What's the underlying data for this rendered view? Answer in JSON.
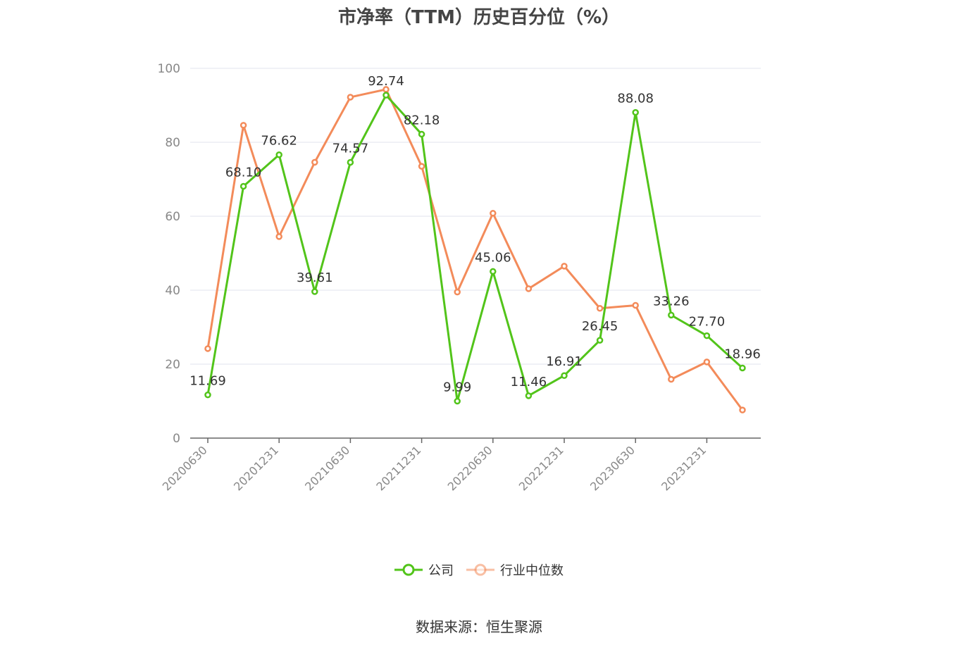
{
  "chart_data": {
    "type": "line",
    "title": "市净率（TTM）历史百分位（%）",
    "x": [
      "20200630",
      "20200930",
      "20201231",
      "20210331",
      "20210630",
      "20210930",
      "20211231",
      "20220331",
      "20220630",
      "20220930",
      "20221231",
      "20230331",
      "20230630",
      "20230930",
      "20231231",
      "20240331"
    ],
    "x_tick_labels": [
      "20200630",
      "20201231",
      "20210630",
      "20211231",
      "20220630",
      "20221231",
      "20230630",
      "20231231"
    ],
    "ylim": [
      0,
      100
    ],
    "y_ticks": [
      0,
      20,
      40,
      60,
      80,
      100
    ],
    "grid": true,
    "legend_position": "bottom",
    "series": [
      {
        "name": "公司",
        "color": "#52c41a",
        "values": [
          11.69,
          68.1,
          76.62,
          39.61,
          74.57,
          92.74,
          82.18,
          9.99,
          45.06,
          11.46,
          16.91,
          26.45,
          88.08,
          33.26,
          27.7,
          18.96
        ],
        "labels": [
          "11.69",
          "68.10",
          "76.62",
          "39.61",
          "74.57",
          "92.74",
          "82.18",
          "9.99",
          "45.06",
          "11.46",
          "16.91",
          "26.45",
          "88.08",
          "33.26",
          "27.70",
          "18.96"
        ]
      },
      {
        "name": "行业中位数",
        "color": "#f38b5a",
        "values": [
          24.2,
          84.6,
          54.5,
          74.6,
          92.2,
          94.3,
          73.5,
          39.5,
          60.8,
          40.4,
          46.5,
          35.1,
          35.9,
          15.9,
          20.6,
          7.6
        ]
      }
    ]
  },
  "source_text": "数据来源：恒生聚源"
}
